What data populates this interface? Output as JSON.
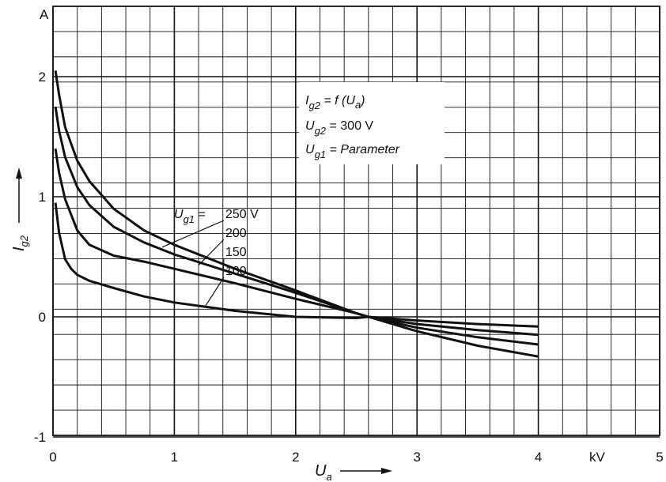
{
  "chart_data": {
    "type": "line",
    "title": "",
    "y_unit": "A",
    "x_unit": "kV",
    "x_ticks": [
      "0",
      "1",
      "2",
      "3",
      "4",
      "5"
    ],
    "y_ticks": [
      "2",
      "1",
      "0",
      "-1"
    ],
    "xlim": [
      0,
      5
    ],
    "ylim": [
      -1,
      2.5
    ],
    "grid": true,
    "xlabel": {
      "main": "U",
      "sub": "a"
    },
    "ylabel": {
      "main": "I",
      "sub": "g2"
    },
    "annotation": {
      "line1": {
        "main": "I",
        "sub": "g2",
        "rest": " =  f (U",
        "sub2": "a",
        "close": ")"
      },
      "line2": {
        "main": "U",
        "sub": "g2",
        "rest": " =  300 V"
      },
      "line3": {
        "main": "U",
        "sub": "g1",
        "rest": " = Parameter"
      }
    },
    "series_label_prefix": {
      "main": "U",
      "sub": "g1",
      "eq": " ="
    },
    "series": [
      {
        "name": "250 V",
        "x": [
          0.02,
          0.05,
          0.1,
          0.2,
          0.3,
          0.5,
          0.75,
          1.0,
          1.5,
          2.0,
          2.5,
          2.6,
          3.0,
          3.5,
          4.0
        ],
        "y": [
          2.05,
          1.85,
          1.58,
          1.3,
          1.13,
          0.9,
          0.72,
          0.6,
          0.4,
          0.22,
          0.03,
          0.0,
          -0.12,
          -0.24,
          -0.33
        ]
      },
      {
        "name": "200",
        "x": [
          0.02,
          0.05,
          0.1,
          0.2,
          0.3,
          0.5,
          0.75,
          1.0,
          1.5,
          2.0,
          2.5,
          2.6,
          3.0,
          3.5,
          4.0
        ],
        "y": [
          1.75,
          1.55,
          1.33,
          1.08,
          0.93,
          0.75,
          0.62,
          0.52,
          0.36,
          0.2,
          0.03,
          0.0,
          -0.09,
          -0.17,
          -0.23
        ]
      },
      {
        "name": "150",
        "x": [
          0.02,
          0.05,
          0.1,
          0.2,
          0.3,
          0.5,
          0.75,
          1.0,
          1.5,
          2.0,
          2.5,
          2.6,
          3.0,
          3.5,
          4.0
        ],
        "y": [
          1.4,
          1.2,
          0.98,
          0.72,
          0.6,
          0.51,
          0.46,
          0.4,
          0.28,
          0.15,
          0.03,
          0.0,
          -0.06,
          -0.11,
          -0.15
        ]
      },
      {
        "name": "100",
        "x": [
          0.02,
          0.05,
          0.1,
          0.15,
          0.2,
          0.3,
          0.5,
          0.75,
          1.0,
          1.5,
          2.0,
          2.5,
          2.6,
          3.0,
          3.5,
          4.0
        ],
        "y": [
          0.95,
          0.7,
          0.48,
          0.4,
          0.35,
          0.3,
          0.24,
          0.17,
          0.12,
          0.05,
          0.0,
          -0.01,
          0.0,
          -0.03,
          -0.06,
          -0.08
        ]
      }
    ]
  }
}
